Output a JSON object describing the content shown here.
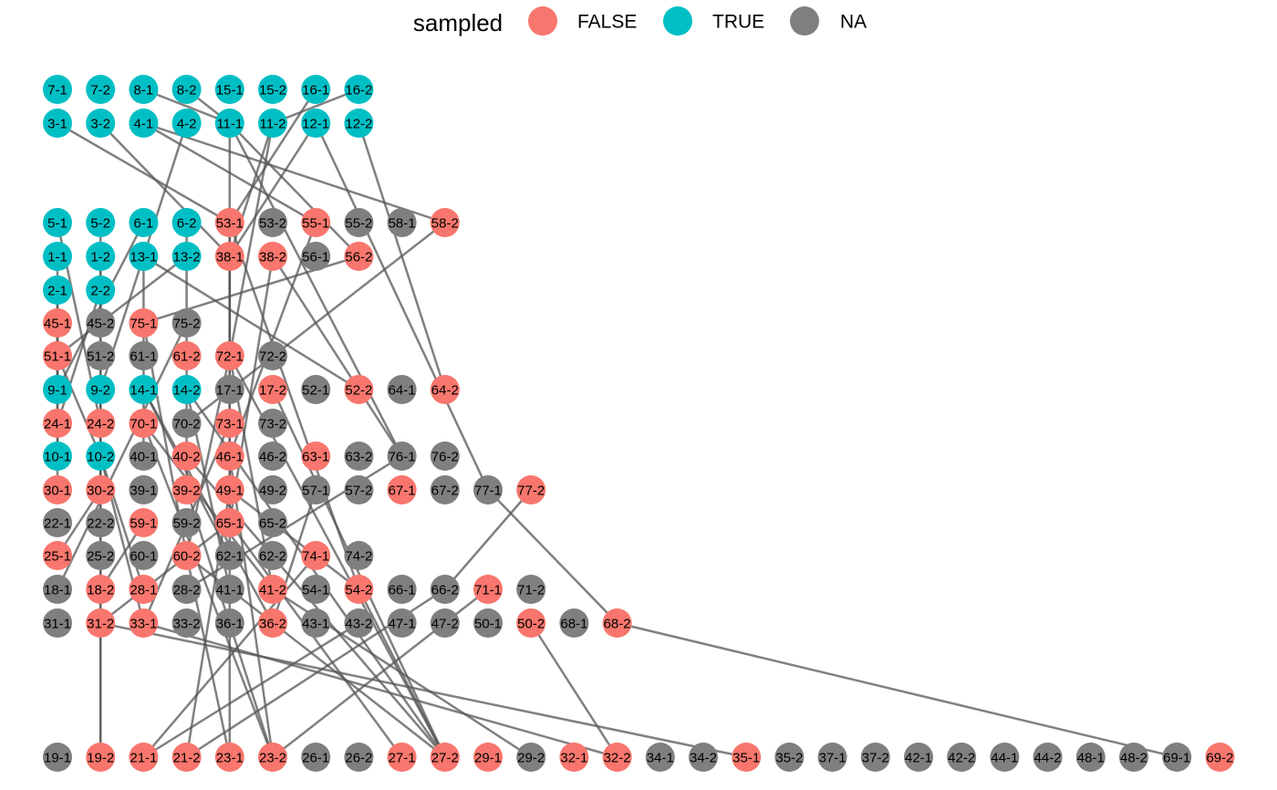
{
  "legend": {
    "title": "sampled",
    "entries": [
      {
        "label": "FALSE",
        "color": "#f8766d"
      },
      {
        "label": "TRUE",
        "color": "#00bfc4"
      },
      {
        "label": "NA",
        "color": "#7f7f7f"
      }
    ]
  },
  "rows": [
    [
      [
        "7-1",
        "TRUE"
      ],
      [
        "7-2",
        "TRUE"
      ],
      [
        "8-1",
        "TRUE"
      ],
      [
        "8-2",
        "TRUE"
      ],
      [
        "15-1",
        "TRUE"
      ],
      [
        "15-2",
        "TRUE"
      ],
      [
        "16-1",
        "TRUE"
      ],
      [
        "16-2",
        "TRUE"
      ]
    ],
    [
      [
        "3-1",
        "TRUE"
      ],
      [
        "3-2",
        "TRUE"
      ],
      [
        "4-1",
        "TRUE"
      ],
      [
        "4-2",
        "TRUE"
      ],
      [
        "11-1",
        "TRUE"
      ],
      [
        "11-2",
        "TRUE"
      ],
      [
        "12-1",
        "TRUE"
      ],
      [
        "12-2",
        "TRUE"
      ]
    ],
    [
      [
        "5-1",
        "TRUE"
      ],
      [
        "5-2",
        "TRUE"
      ],
      [
        "6-1",
        "TRUE"
      ],
      [
        "6-2",
        "TRUE"
      ],
      [
        "53-1",
        "FALSE"
      ],
      [
        "53-2",
        "NA"
      ],
      [
        "55-1",
        "FALSE"
      ],
      [
        "55-2",
        "NA"
      ],
      [
        "58-1",
        "NA"
      ],
      [
        "58-2",
        "FALSE"
      ]
    ],
    [
      [
        "1-1",
        "TRUE"
      ],
      [
        "1-2",
        "TRUE"
      ],
      [
        "13-1",
        "TRUE"
      ],
      [
        "13-2",
        "TRUE"
      ],
      [
        "38-1",
        "FALSE"
      ],
      [
        "38-2",
        "FALSE"
      ],
      [
        "56-1",
        "NA"
      ],
      [
        "56-2",
        "FALSE"
      ]
    ],
    [
      [
        "2-1",
        "TRUE"
      ],
      [
        "2-2",
        "TRUE"
      ]
    ],
    [
      [
        "45-1",
        "FALSE"
      ],
      [
        "45-2",
        "NA"
      ],
      [
        "75-1",
        "FALSE"
      ],
      [
        "75-2",
        "NA"
      ]
    ],
    [
      [
        "51-1",
        "FALSE"
      ],
      [
        "51-2",
        "NA"
      ],
      [
        "61-1",
        "NA"
      ],
      [
        "61-2",
        "FALSE"
      ],
      [
        "72-1",
        "FALSE"
      ],
      [
        "72-2",
        "NA"
      ]
    ],
    [
      [
        "9-1",
        "TRUE"
      ],
      [
        "9-2",
        "TRUE"
      ],
      [
        "14-1",
        "TRUE"
      ],
      [
        "14-2",
        "TRUE"
      ],
      [
        "17-1",
        "NA"
      ],
      [
        "17-2",
        "FALSE"
      ],
      [
        "52-1",
        "NA"
      ],
      [
        "52-2",
        "FALSE"
      ],
      [
        "64-1",
        "NA"
      ],
      [
        "64-2",
        "FALSE"
      ]
    ],
    [
      [
        "24-1",
        "FALSE"
      ],
      [
        "24-2",
        "FALSE"
      ],
      [
        "70-1",
        "FALSE"
      ],
      [
        "70-2",
        "NA"
      ],
      [
        "73-1",
        "FALSE"
      ],
      [
        "73-2",
        "NA"
      ]
    ],
    [
      [
        "10-1",
        "TRUE"
      ],
      [
        "10-2",
        "TRUE"
      ],
      [
        "40-1",
        "NA"
      ],
      [
        "40-2",
        "FALSE"
      ],
      [
        "46-1",
        "FALSE"
      ],
      [
        "46-2",
        "NA"
      ],
      [
        "63-1",
        "FALSE"
      ],
      [
        "63-2",
        "NA"
      ],
      [
        "76-1",
        "NA"
      ],
      [
        "76-2",
        "NA"
      ]
    ],
    [
      [
        "30-1",
        "FALSE"
      ],
      [
        "30-2",
        "FALSE"
      ],
      [
        "39-1",
        "NA"
      ],
      [
        "39-2",
        "FALSE"
      ],
      [
        "49-1",
        "FALSE"
      ],
      [
        "49-2",
        "NA"
      ],
      [
        "57-1",
        "NA"
      ],
      [
        "57-2",
        "NA"
      ],
      [
        "67-1",
        "FALSE"
      ],
      [
        "67-2",
        "NA"
      ],
      [
        "77-1",
        "NA"
      ],
      [
        "77-2",
        "FALSE"
      ]
    ],
    [
      [
        "22-1",
        "NA"
      ],
      [
        "22-2",
        "NA"
      ],
      [
        "59-1",
        "FALSE"
      ],
      [
        "59-2",
        "NA"
      ],
      [
        "65-1",
        "FALSE"
      ],
      [
        "65-2",
        "NA"
      ]
    ],
    [
      [
        "25-1",
        "FALSE"
      ],
      [
        "25-2",
        "NA"
      ],
      [
        "60-1",
        "NA"
      ],
      [
        "60-2",
        "FALSE"
      ],
      [
        "62-1",
        "NA"
      ],
      [
        "62-2",
        "NA"
      ],
      [
        "74-1",
        "FALSE"
      ],
      [
        "74-2",
        "NA"
      ]
    ],
    [
      [
        "18-1",
        "NA"
      ],
      [
        "18-2",
        "FALSE"
      ],
      [
        "28-1",
        "FALSE"
      ],
      [
        "28-2",
        "NA"
      ],
      [
        "41-1",
        "NA"
      ],
      [
        "41-2",
        "FALSE"
      ],
      [
        "54-1",
        "NA"
      ],
      [
        "54-2",
        "FALSE"
      ],
      [
        "66-1",
        "NA"
      ],
      [
        "66-2",
        "NA"
      ],
      [
        "71-1",
        "FALSE"
      ],
      [
        "71-2",
        "NA"
      ]
    ],
    [
      [
        "31-1",
        "NA"
      ],
      [
        "31-2",
        "FALSE"
      ],
      [
        "33-1",
        "FALSE"
      ],
      [
        "33-2",
        "NA"
      ],
      [
        "36-1",
        "NA"
      ],
      [
        "36-2",
        "FALSE"
      ],
      [
        "43-1",
        "NA"
      ],
      [
        "43-2",
        "NA"
      ],
      [
        "47-1",
        "NA"
      ],
      [
        "47-2",
        "NA"
      ],
      [
        "50-1",
        "NA"
      ],
      [
        "50-2",
        "FALSE"
      ],
      [
        "68-1",
        "NA"
      ],
      [
        "68-2",
        "FALSE"
      ]
    ],
    [
      [
        "19-1",
        "NA"
      ],
      [
        "19-2",
        "FALSE"
      ],
      [
        "21-1",
        "FALSE"
      ],
      [
        "21-2",
        "FALSE"
      ],
      [
        "23-1",
        "FALSE"
      ],
      [
        "23-2",
        "FALSE"
      ],
      [
        "26-1",
        "NA"
      ],
      [
        "26-2",
        "NA"
      ],
      [
        "27-1",
        "FALSE"
      ],
      [
        "27-2",
        "FALSE"
      ],
      [
        "29-1",
        "FALSE"
      ],
      [
        "29-2",
        "NA"
      ],
      [
        "32-1",
        "FALSE"
      ],
      [
        "32-2",
        "FALSE"
      ],
      [
        "34-1",
        "NA"
      ],
      [
        "34-2",
        "NA"
      ],
      [
        "35-1",
        "FALSE"
      ],
      [
        "35-2",
        "NA"
      ],
      [
        "37-1",
        "NA"
      ],
      [
        "37-2",
        "NA"
      ],
      [
        "42-1",
        "NA"
      ],
      [
        "42-2",
        "NA"
      ],
      [
        "44-1",
        "NA"
      ],
      [
        "44-2",
        "NA"
      ],
      [
        "48-1",
        "NA"
      ],
      [
        "48-2",
        "NA"
      ],
      [
        "69-1",
        "NA"
      ],
      [
        "69-2",
        "FALSE"
      ]
    ]
  ]
}
